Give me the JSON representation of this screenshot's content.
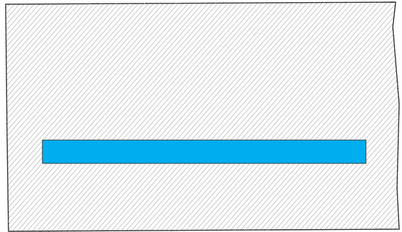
{
  "colors": {
    "background": "#ffffff",
    "panel_outline": "#333333",
    "hatch": "#c2c2c2",
    "bar_fill": "#00adef",
    "bar_outline": "#3a3a3a"
  }
}
